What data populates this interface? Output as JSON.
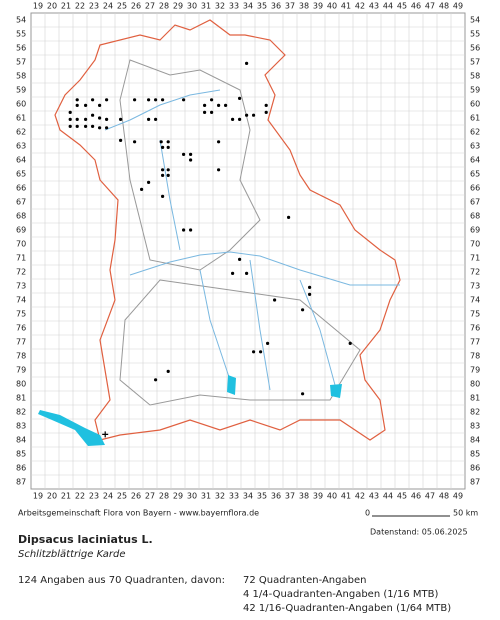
{
  "map": {
    "columns": [
      19,
      20,
      21,
      22,
      23,
      24,
      25,
      26,
      27,
      28,
      29,
      30,
      31,
      32,
      33,
      34,
      35,
      36,
      37,
      38,
      39,
      40,
      41,
      42,
      43,
      44,
      45,
      46,
      47,
      48,
      49
    ],
    "rows": [
      54,
      55,
      56,
      57,
      58,
      59,
      60,
      61,
      62,
      63,
      64,
      65,
      66,
      67,
      68,
      69,
      70,
      71,
      72,
      73,
      74,
      75,
      76,
      77,
      78,
      79,
      80,
      81,
      82,
      83,
      84,
      85,
      86,
      87
    ],
    "points": [
      [
        33.9,
        57.1
      ],
      [
        21.8,
        59.7
      ],
      [
        21.8,
        60.1
      ],
      [
        22.4,
        60.1
      ],
      [
        22.9,
        59.7
      ],
      [
        23.4,
        60.1
      ],
      [
        23.9,
        59.7
      ],
      [
        25.9,
        59.7
      ],
      [
        26.9,
        59.7
      ],
      [
        27.4,
        59.7
      ],
      [
        27.9,
        59.7
      ],
      [
        29.4,
        59.7
      ],
      [
        30.9,
        60.1
      ],
      [
        31.4,
        59.7
      ],
      [
        31.9,
        60.1
      ],
      [
        32.4,
        60.1
      ],
      [
        33.4,
        59.6
      ],
      [
        35.3,
        60.1
      ],
      [
        21.3,
        60.6
      ],
      [
        21.3,
        61.1
      ],
      [
        21.8,
        61.1
      ],
      [
        22.4,
        61.1
      ],
      [
        22.9,
        60.8
      ],
      [
        23.4,
        61.0
      ],
      [
        23.9,
        61.1
      ],
      [
        24.9,
        61.1
      ],
      [
        26.9,
        61.1
      ],
      [
        27.4,
        61.1
      ],
      [
        30.9,
        60.6
      ],
      [
        31.4,
        60.6
      ],
      [
        32.9,
        61.1
      ],
      [
        33.4,
        61.1
      ],
      [
        33.9,
        60.8
      ],
      [
        34.4,
        60.8
      ],
      [
        35.3,
        60.6
      ],
      [
        21.3,
        61.6
      ],
      [
        21.8,
        61.6
      ],
      [
        22.4,
        61.6
      ],
      [
        22.9,
        61.6
      ],
      [
        23.4,
        61.7
      ],
      [
        23.9,
        61.7
      ],
      [
        24.9,
        62.6
      ],
      [
        25.9,
        62.7
      ],
      [
        27.8,
        62.7
      ],
      [
        27.9,
        63.1
      ],
      [
        28.3,
        62.7
      ],
      [
        28.3,
        63.1
      ],
      [
        31.9,
        62.7
      ],
      [
        29.4,
        63.6
      ],
      [
        29.9,
        63.6
      ],
      [
        29.9,
        64.0
      ],
      [
        27.9,
        64.7
      ],
      [
        28.3,
        64.7
      ],
      [
        27.9,
        65.1
      ],
      [
        28.3,
        65.1
      ],
      [
        31.9,
        64.7
      ],
      [
        26.9,
        65.6
      ],
      [
        26.4,
        66.1
      ],
      [
        27.9,
        66.6
      ],
      [
        29.4,
        69.0
      ],
      [
        29.9,
        69.0
      ],
      [
        33.4,
        71.1
      ],
      [
        32.9,
        72.1
      ],
      [
        33.9,
        72.1
      ],
      [
        36.9,
        68.1
      ],
      [
        38.4,
        73.1
      ],
      [
        38.4,
        73.6
      ],
      [
        37.9,
        74.7
      ],
      [
        35.9,
        74.0
      ],
      [
        35.4,
        77.1
      ],
      [
        34.9,
        77.7
      ],
      [
        34.4,
        77.7
      ],
      [
        41.3,
        77.1
      ],
      [
        28.3,
        79.1
      ],
      [
        27.4,
        79.7
      ],
      [
        37.9,
        80.7
      ]
    ],
    "cross": [
      23.8,
      83.6
    ]
  },
  "footer": {
    "credit": "Arbeitsgemeinschaft Flora von Bayern - www.bayernflora.de",
    "scale_start": "0",
    "scale_end": "50 km",
    "date": "Datenstand: 05.06.2025",
    "species": "Dipsacus laciniatus L.",
    "common_name": "Schlitzblättrige Karde",
    "summary": "124 Angaben aus 70 Quadranten, davon:",
    "detail": [
      "72 Quadranten-Angaben",
      "4 1/4-Quadranten-Angaben (1/16 MTB)",
      "42 1/16-Quadranten-Angaben (1/64 MTB)"
    ]
  }
}
